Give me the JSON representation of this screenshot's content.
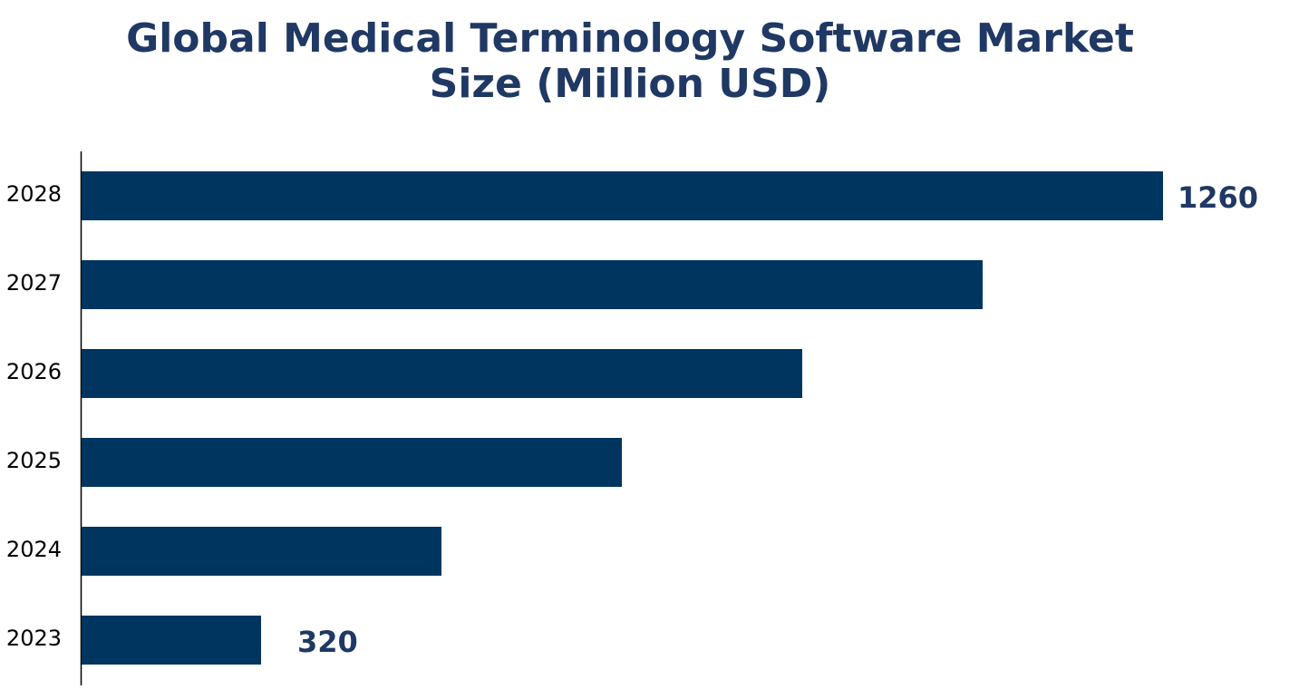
{
  "chart_data": {
    "type": "bar",
    "orientation": "horizontal",
    "title_lines": [
      "Global Medical Terminology Software Market",
      "Size (Million USD)"
    ],
    "categories": [
      "2023",
      "2024",
      "2025",
      "2026",
      "2027",
      "2028"
    ],
    "values": [
      320,
      508,
      696,
      884,
      1072,
      1260
    ],
    "data_labels": {
      "2023": "320",
      "2028": "1260"
    },
    "xlabel": "",
    "ylabel": "",
    "grid": false,
    "legend": "none",
    "colors": {
      "bar": "#003560",
      "title": "#1f3864",
      "label": "#1f3864"
    }
  }
}
